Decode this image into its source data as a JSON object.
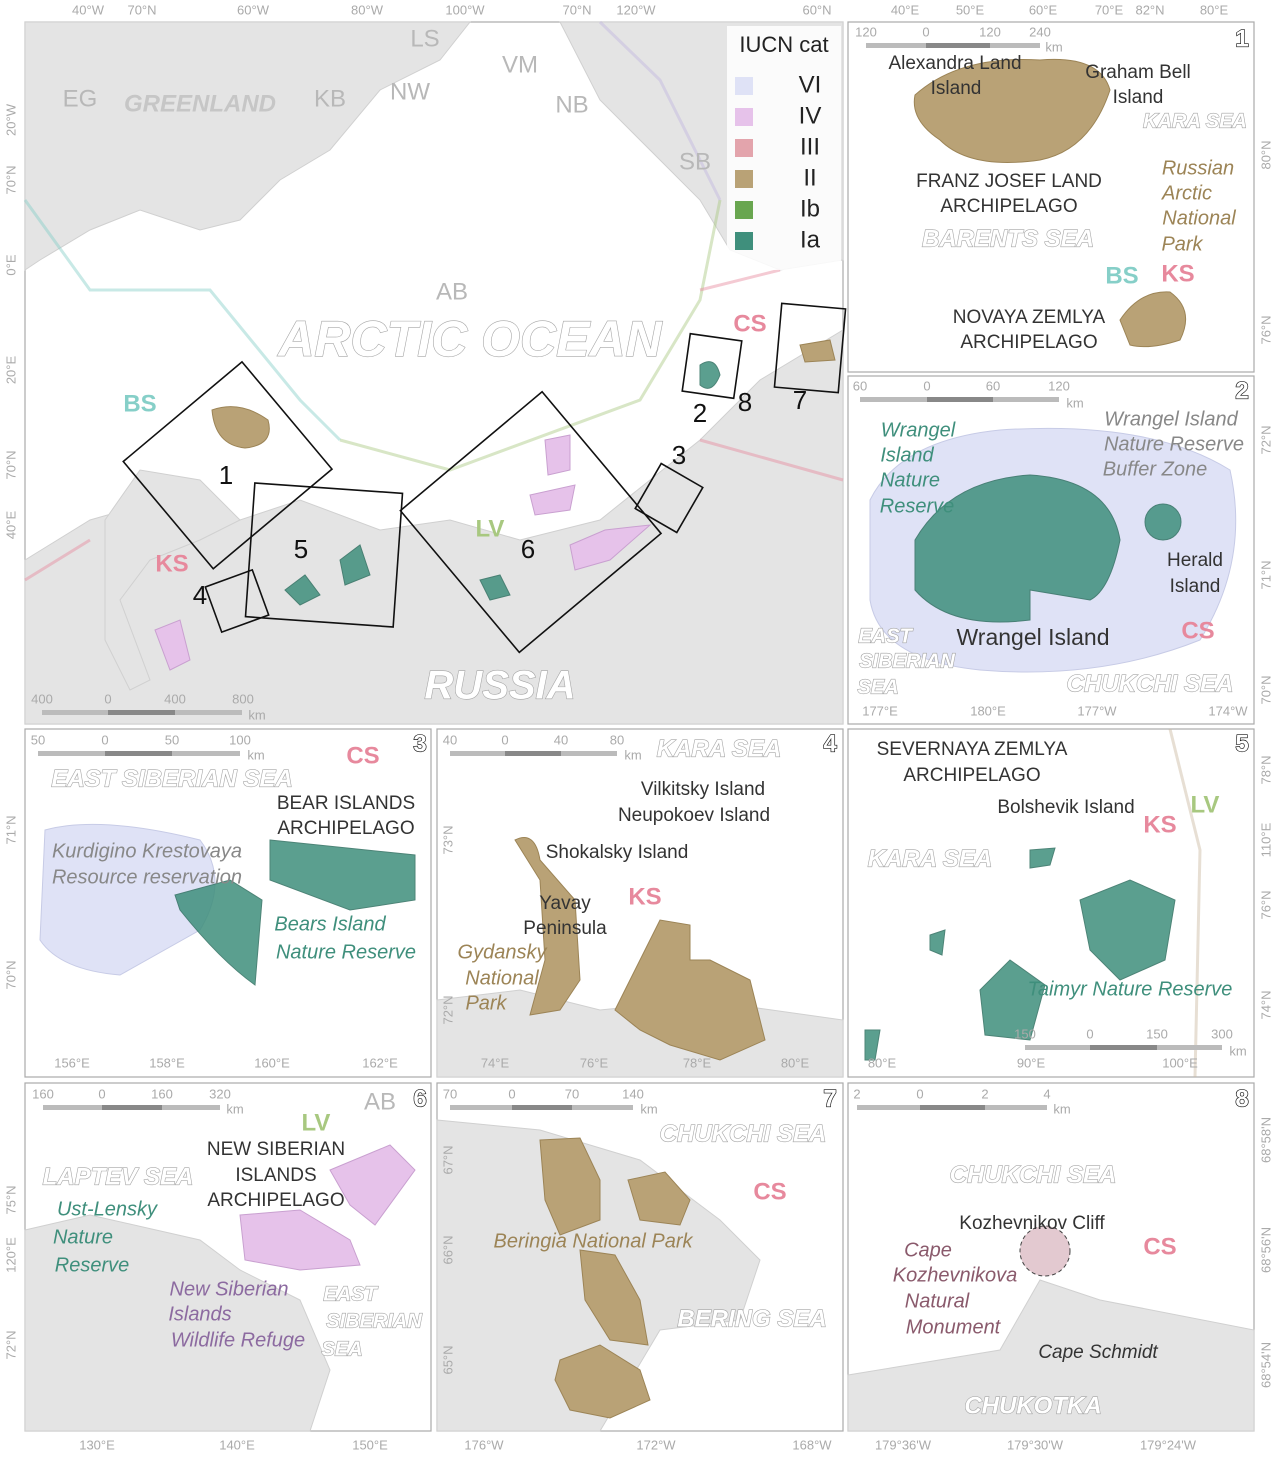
{
  "legend": {
    "title": "IUCN cat",
    "items": [
      {
        "label": "VI",
        "color": "#dfe2f6"
      },
      {
        "label": "IV",
        "color": "#e6c2ea"
      },
      {
        "label": "III",
        "color": "#e3a4ac"
      },
      {
        "label": "II",
        "color": "#b9a276"
      },
      {
        "label": "Ib",
        "color": "#69a650"
      },
      {
        "label": "Ia",
        "color": "#3f8f7c"
      }
    ]
  },
  "main": {
    "regions": [
      "EG",
      "KB",
      "NW",
      "LS",
      "VM",
      "NB",
      "SB",
      "AB",
      "CS",
      "BS",
      "KS",
      "LV"
    ],
    "places": [
      "GREENLAND",
      "ARCTIC OCEAN",
      "RUSSIA"
    ],
    "insets": [
      "1",
      "2",
      "3",
      "4",
      "5",
      "6",
      "7",
      "8"
    ],
    "graticule": [
      "40°W",
      "70°N",
      "60°W",
      "80°W",
      "100°W",
      "70°N",
      "120°W",
      "60°N",
      "20°W",
      "70°N",
      "0°E",
      "20°E",
      "70°N",
      "40°E"
    ],
    "scale": [
      "400",
      "0",
      "400",
      "800",
      "km"
    ]
  },
  "panels": [
    {
      "number": "1",
      "labels": [
        "Alexandra Land",
        "Island",
        "Graham Bell",
        "Island",
        "KARA SEA",
        "FRANZ JOSEF LAND",
        "ARCHIPELAGO",
        "Russian",
        "Arctic",
        "National",
        "Park",
        "BARENTS SEA",
        "BS",
        "KS",
        "NOVAYA ZEMLYA",
        "ARCHIPELAGO"
      ],
      "graticule": [
        "40°E",
        "50°E",
        "60°E",
        "70°E",
        "82°N",
        "80°E",
        "80°N",
        "76°N"
      ],
      "scale": [
        "120",
        "0",
        "120",
        "240",
        "km"
      ]
    },
    {
      "number": "2",
      "labels": [
        "Wrangel",
        "Island",
        "Nature",
        "Reserve",
        "Wrangel Island",
        "Nature Reserve",
        "Buffer Zone",
        "Herald",
        "Island",
        "Wrangel Island",
        "CS",
        "EAST",
        "SIBERIAN",
        "SEA",
        "CHUKCHI SEA"
      ],
      "graticule": [
        "177°E",
        "180°E",
        "177°W",
        "174°W",
        "72°N",
        "71°N",
        "70°N"
      ],
      "scale": [
        "60",
        "0",
        "60",
        "120",
        "km"
      ]
    },
    {
      "number": "3",
      "labels": [
        "CS",
        "EAST SIBERIAN SEA",
        "BEAR ISLANDS",
        "ARCHIPELAGO",
        "Kurdigino Krestovaya",
        "Resource reservation",
        "Bears Island",
        "Nature Reserve"
      ],
      "graticule": [
        "156°E",
        "158°E",
        "160°E",
        "162°E",
        "71°N",
        "70°N"
      ],
      "scale": [
        "50",
        "0",
        "50",
        "100",
        "km"
      ]
    },
    {
      "number": "4",
      "labels": [
        "KARA SEA",
        "Vilkitsky Island",
        "Neupokoev Island",
        "Shokalsky Island",
        "Yavay",
        "Peninsula",
        "KS",
        "Gydansky",
        "National",
        "Park"
      ],
      "graticule": [
        "74°E",
        "76°E",
        "78°E",
        "80°E",
        "73°N",
        "72°N"
      ],
      "scale": [
        "40",
        "0",
        "40",
        "80",
        "km"
      ]
    },
    {
      "number": "5",
      "labels": [
        "SEVERNAYA ZEMLYA",
        "ARCHIPELAGO",
        "Bolshevik Island",
        "KS",
        "LV",
        "KARA SEA",
        "Taimyr Nature Reserve"
      ],
      "graticule": [
        "80°E",
        "90°E",
        "100°E",
        "78°N",
        "110°E",
        "76°N",
        "74°N"
      ],
      "scale": [
        "150",
        "0",
        "150",
        "300",
        "km"
      ]
    },
    {
      "number": "6",
      "labels": [
        "LV",
        "AB",
        "NEW SIBERIAN",
        "ISLANDS",
        "ARCHIPELAGO",
        "LAPTEV SEA",
        "Ust-Lensky",
        "Nature",
        "Reserve",
        "New Siberian",
        "Islands",
        "Wildlife Refuge",
        "EAST",
        "SIBERIAN",
        "SEA"
      ],
      "graticule": [
        "130°E",
        "140°E",
        "150°E",
        "75°N",
        "120°E",
        "72°N"
      ],
      "scale": [
        "160",
        "0",
        "160",
        "320",
        "km"
      ]
    },
    {
      "number": "7",
      "labels": [
        "CHUKCHI SEA",
        "CS",
        "Beringia National Park",
        "BERING SEA"
      ],
      "graticule": [
        "176°W",
        "172°W",
        "168°W",
        "67°N",
        "66°N",
        "65°N"
      ],
      "scale": [
        "70",
        "0",
        "70",
        "140",
        "km"
      ]
    },
    {
      "number": "8",
      "labels": [
        "CHUKCHI SEA",
        "Kozhevnikov Cliff",
        "CS",
        "Cape",
        "Kozhevnikova",
        "Natural",
        "Monument",
        "Cape Schmidt",
        "CHUKOTKA"
      ],
      "graticule": [
        "179°36'W",
        "179°30'W",
        "179°24'W",
        "68°58'N",
        "68°56'N",
        "68°54'N"
      ],
      "scale": [
        "2",
        "0",
        "2",
        "4",
        "km"
      ]
    }
  ]
}
